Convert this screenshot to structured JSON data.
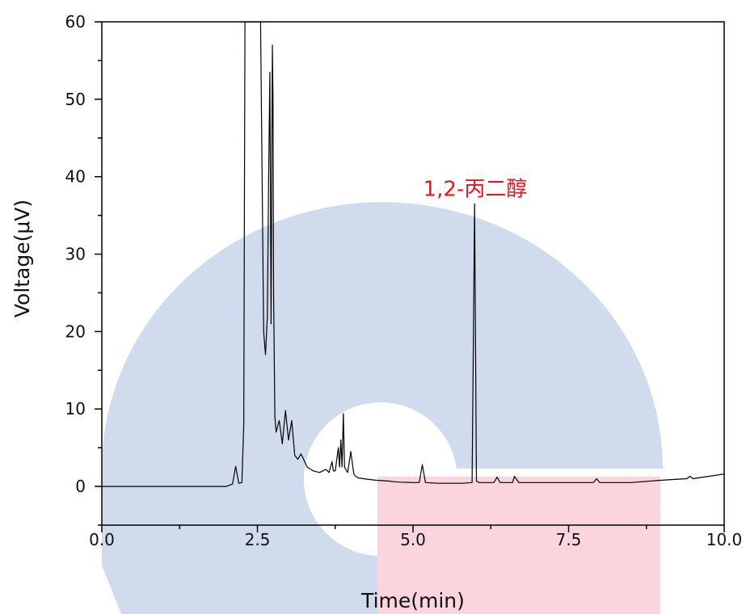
{
  "chart_data": {
    "type": "line",
    "xlabel": "Time(min)",
    "ylabel": "Voltage(μV)",
    "xlim": [
      0,
      10
    ],
    "ylim": [
      -5,
      60
    ],
    "x_ticks": [
      "0.0",
      "2.5",
      "5.0",
      "7.5",
      "10.0"
    ],
    "y_ticks": [
      "0",
      "10",
      "20",
      "30",
      "40",
      "50",
      "60"
    ],
    "grid": false,
    "series": [
      {
        "color": "#000000",
        "x": [
          0.0,
          1.0,
          2.0,
          2.1,
          2.15,
          2.2,
          2.25,
          2.28,
          2.3,
          2.32,
          2.36,
          2.4,
          2.45,
          2.5,
          2.55,
          2.6,
          2.63,
          2.66,
          2.68,
          2.7,
          2.72,
          2.74,
          2.75,
          2.76,
          2.78,
          2.8,
          2.85,
          2.9,
          2.95,
          3.0,
          3.05,
          3.1,
          3.15,
          3.2,
          3.3,
          3.4,
          3.5,
          3.6,
          3.65,
          3.7,
          3.72,
          3.75,
          3.8,
          3.82,
          3.84,
          3.86,
          3.88,
          3.9,
          3.92,
          3.95,
          4.0,
          4.05,
          4.08,
          4.12,
          4.2,
          4.3,
          4.4,
          4.5,
          4.6,
          4.7,
          4.8,
          5.0,
          5.1,
          5.15,
          5.2,
          5.4,
          5.6,
          5.8,
          5.95,
          5.99,
          6.02,
          6.06,
          6.2,
          6.3,
          6.35,
          6.4,
          6.6,
          6.63,
          6.7,
          7.0,
          7.5,
          7.9,
          7.95,
          8.0,
          8.5,
          9.0,
          9.4,
          9.45,
          9.5,
          10.0
        ],
        "y": [
          0.0,
          0.0,
          0.0,
          0.3,
          2.6,
          0.4,
          0.5,
          8.0,
          60.0,
          60.0,
          60.0,
          60.0,
          60.0,
          60.0,
          60.0,
          20.0,
          17.0,
          22.0,
          40.0,
          53.5,
          21.0,
          57.0,
          50.0,
          25.0,
          9.0,
          7.0,
          8.5,
          5.5,
          9.8,
          6.0,
          8.5,
          4.0,
          3.5,
          4.2,
          2.5,
          2.0,
          1.8,
          2.2,
          1.8,
          3.2,
          2.0,
          2.0,
          5.0,
          2.5,
          6.0,
          2.5,
          9.4,
          2.5,
          2.2,
          1.8,
          4.5,
          1.6,
          1.3,
          1.1,
          1.0,
          0.9,
          0.8,
          0.75,
          0.7,
          0.6,
          0.55,
          0.5,
          0.5,
          2.8,
          0.5,
          0.4,
          0.4,
          0.4,
          0.5,
          36.5,
          0.7,
          0.5,
          0.5,
          0.5,
          1.2,
          0.5,
          0.5,
          1.3,
          0.5,
          0.5,
          0.5,
          0.5,
          1.0,
          0.5,
          0.5,
          0.8,
          1.0,
          1.3,
          1.0,
          1.6
        ]
      }
    ],
    "annotations": [
      {
        "text": "1,2-丙二醇",
        "x": 6.0,
        "y": 37.5,
        "color": "#e8141e"
      }
    ]
  }
}
